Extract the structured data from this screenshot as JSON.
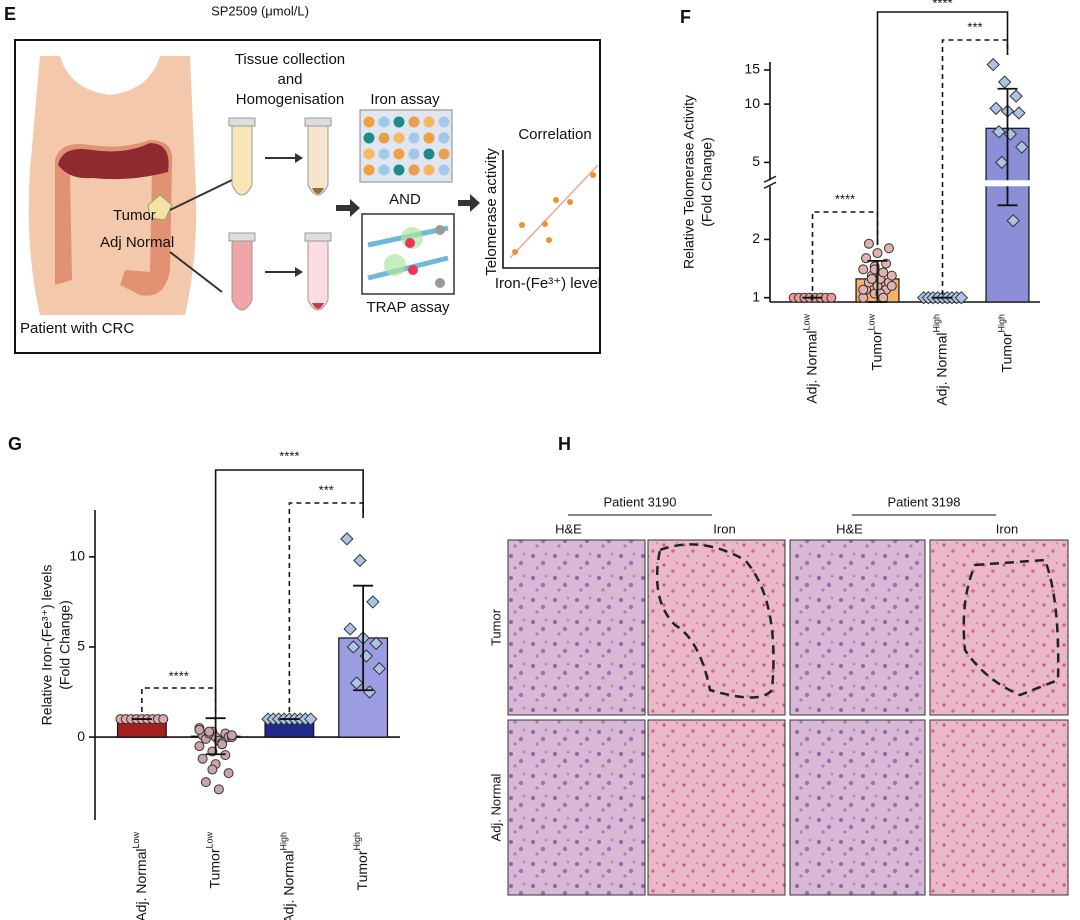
{
  "figure": {
    "header": "SP2509 (μmol/L)",
    "panel_e": {
      "letter": "E",
      "steps": [
        "Tissue collection",
        "and",
        "Homogenisation"
      ],
      "iron_assay": "Iron assay",
      "and": "AND",
      "trap_assay": "TRAP assay",
      "correlation": "Correlation",
      "corr_y": "Telomerase activity",
      "corr_x": "Iron-(Fe³⁺) level",
      "tumor": "Tumor",
      "adj_normal": "Adj Normal",
      "patient": "Patient with CRC"
    },
    "panel_h": {
      "letter": "H",
      "patients": [
        "Patient 3190",
        "Patient 3198"
      ],
      "columns": [
        "H&E",
        "Iron",
        "H&E",
        "Iron"
      ],
      "rows": [
        "Tumor",
        "Adj. Normal"
      ]
    }
  },
  "chart_data": [
    {
      "type": "bar",
      "panel": "F",
      "ylabel": [
        "Relative Telomerase Activity",
        "(Fold Change)"
      ],
      "categories": [
        {
          "name": "Adj. Normal",
          "sup": "Low"
        },
        {
          "name": "Tumor",
          "sup": "Low"
        },
        {
          "name": "Adj. Normal",
          "sup": "High"
        },
        {
          "name": "Tumor",
          "sup": "High"
        }
      ],
      "values": [
        1,
        1.25,
        1,
        7.5
      ],
      "errors": [
        0,
        0.3,
        0,
        4.5
      ],
      "points": [
        [
          1,
          1,
          1,
          1,
          1,
          1,
          1,
          1
        ],
        [
          1.0,
          1.05,
          1.1,
          1.1,
          1.15,
          1.2,
          1.2,
          1.25,
          1.3,
          1.3,
          1.35,
          1.4,
          1.45,
          1.5,
          1.6,
          1.7,
          1.8,
          1.9,
          1.05,
          1.15,
          1.25,
          1.0,
          1.1,
          1.4
        ],
        [
          1,
          1,
          1,
          1,
          1,
          1,
          1,
          1,
          1
        ],
        [
          16,
          13,
          11,
          9.5,
          9.2,
          9,
          7.2,
          7,
          6,
          5,
          2.5
        ]
      ],
      "colors": [
        "#f2a6a0",
        "#f5b26c",
        "#8c8fd8",
        "#8c8fd8"
      ],
      "point_colors": [
        "#e89a9a",
        "#e2b2ae",
        "#a9c4e4",
        "#a9c4e4"
      ],
      "yscale": "log",
      "ylim": [
        0.95,
        16.5
      ],
      "yticks": [
        1,
        2,
        5,
        10,
        15
      ],
      "ybreak": 3.9,
      "annotations": [
        "****",
        "****",
        "***"
      ]
    },
    {
      "type": "bar",
      "panel": "G",
      "ylabel": [
        "Relative Iron-(Fe³⁺) levels",
        "(Fold Change)"
      ],
      "categories": [
        {
          "name": "Adj. Normal",
          "sup": "Low"
        },
        {
          "name": "Tumor",
          "sup": "Low"
        },
        {
          "name": "Adj. Normal",
          "sup": "High"
        },
        {
          "name": "Tumor",
          "sup": "High"
        }
      ],
      "values": [
        1,
        0.05,
        1,
        5.5
      ],
      "errors": [
        0,
        1.0,
        0,
        2.9
      ],
      "points": [
        [
          1,
          1,
          1,
          1,
          1,
          1,
          1,
          1,
          1
        ],
        [
          0.5,
          0.3,
          0.2,
          0.1,
          0,
          0,
          -0.1,
          -0.2,
          0,
          0.2,
          -0.3,
          -0.5,
          -0.8,
          -1.0,
          -1.2,
          -1.5,
          -2.0,
          -2.5,
          -2.9,
          0.1,
          0.3,
          -0.4,
          0.4,
          -1.8
        ],
        [
          1,
          1,
          1,
          1,
          1,
          1,
          1,
          1,
          1
        ],
        [
          11,
          9.8,
          7.5,
          6,
          5.5,
          5.2,
          5,
          4.5,
          3.8,
          3,
          2.5
        ]
      ],
      "colors": [
        "#a3201e",
        "#d8d8d8",
        "#1f2a8c",
        "#9c9ce2"
      ],
      "point_colors": [
        "#e0a8a8",
        "#caa5a5",
        "#a9c4e4",
        "#a9c4e4"
      ],
      "yscale": "linear",
      "ylim": [
        -4.6,
        12.6
      ],
      "yticks": [
        0,
        5,
        10
      ],
      "annotations": [
        "****",
        "****",
        "***"
      ]
    }
  ]
}
